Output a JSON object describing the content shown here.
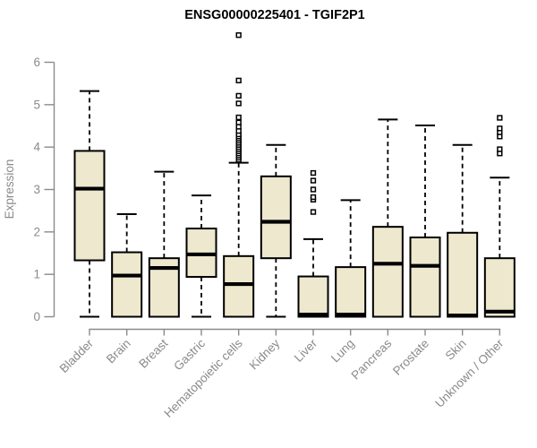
{
  "chart_data": {
    "type": "boxplot",
    "title": "ENSG00000225401 - TGIF2P1",
    "ylabel": "Expression",
    "xlabel": "",
    "ylim": [
      0,
      6
    ],
    "yticks": [
      "0",
      "1",
      "2",
      "3",
      "4",
      "5",
      "6"
    ],
    "grid": false,
    "legend": "none",
    "colors": {
      "box_fill": "#EDE8CE",
      "box_stroke": "#000000",
      "median_stroke": "#000000",
      "whisker_stroke": "#000000",
      "axis_color": "#8a8a8a",
      "title_color": "#000000",
      "background": "#ffffff"
    },
    "categories": [
      "Bladder",
      "Brain",
      "Breast",
      "Gastric",
      "Hematopoietic cells",
      "Kidney",
      "Liver",
      "Lung",
      "Pancreas",
      "Prostate",
      "Skin",
      "Unknown / Other"
    ],
    "boxes": [
      {
        "category": "Bladder",
        "whisker_low": 0,
        "q1": 1.33,
        "median": 3.02,
        "q3": 3.91,
        "whisker_high": 5.32,
        "outliers": []
      },
      {
        "category": "Brain",
        "whisker_low": 0,
        "q1": 0,
        "median": 0.97,
        "q3": 1.52,
        "whisker_high": 2.42,
        "outliers": []
      },
      {
        "category": "Breast",
        "whisker_low": 0,
        "q1": 0,
        "median": 1.15,
        "q3": 1.38,
        "whisker_high": 3.42,
        "outliers": []
      },
      {
        "category": "Gastric",
        "whisker_low": 0,
        "q1": 0.94,
        "median": 1.47,
        "q3": 2.08,
        "whisker_high": 2.86,
        "outliers": []
      },
      {
        "category": "Hematopoietic cells",
        "whisker_low": 0,
        "q1": 0,
        "median": 0.77,
        "q3": 1.43,
        "whisker_high": 3.63,
        "outliers": [
          3.7,
          3.75,
          3.8,
          3.85,
          3.9,
          3.95,
          4.0,
          4.05,
          4.1,
          4.15,
          4.2,
          4.25,
          4.3,
          4.38,
          4.48,
          4.58,
          4.7,
          5.03,
          5.21,
          5.57,
          6.64
        ]
      },
      {
        "category": "Kidney",
        "whisker_low": 0,
        "q1": 1.38,
        "median": 2.24,
        "q3": 3.31,
        "whisker_high": 4.05,
        "outliers": []
      },
      {
        "category": "Liver",
        "whisker_low": 0,
        "q1": 0,
        "median": 0.05,
        "q3": 0.95,
        "whisker_high": 1.83,
        "outliers": [
          2.47,
          2.76,
          2.82,
          3.0,
          3.21,
          3.39
        ]
      },
      {
        "category": "Lung",
        "whisker_low": 0,
        "q1": 0,
        "median": 0.05,
        "q3": 1.17,
        "whisker_high": 2.75,
        "outliers": []
      },
      {
        "category": "Pancreas",
        "whisker_low": 0,
        "q1": 0,
        "median": 1.25,
        "q3": 2.12,
        "whisker_high": 4.65,
        "outliers": []
      },
      {
        "category": "Prostate",
        "whisker_low": 0,
        "q1": 0,
        "median": 1.2,
        "q3": 1.87,
        "whisker_high": 4.51,
        "outliers": []
      },
      {
        "category": "Skin",
        "whisker_low": 0,
        "q1": 0,
        "median": 0.03,
        "q3": 1.98,
        "whisker_high": 4.05,
        "outliers": []
      },
      {
        "category": "Unknown / Other",
        "whisker_low": 0,
        "q1": 0,
        "median": 0.12,
        "q3": 1.38,
        "whisker_high": 3.28,
        "outliers": [
          3.85,
          3.95,
          4.25,
          4.35,
          4.44,
          4.69
        ]
      }
    ]
  }
}
